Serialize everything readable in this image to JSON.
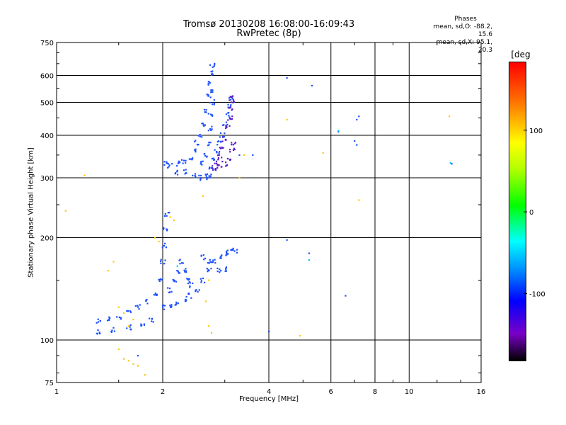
{
  "chart_data": {
    "type": "scatter",
    "title": "Tromsø 20130208 16:08:00-16:09:43",
    "subtitle": "RwPretec (8p)",
    "xlabel": "Frequency [MHz]",
    "ylabel": "Stationary phase Virtual Height [km]",
    "x_scale": "log",
    "y_scale": "log",
    "xlim": [
      1,
      16
    ],
    "ylim": [
      75,
      750
    ],
    "x_ticks": [
      1,
      2,
      4,
      6,
      8,
      10,
      16
    ],
    "y_ticks": [
      75,
      100,
      200,
      300,
      400,
      500,
      600,
      750
    ],
    "grid": true,
    "phases": {
      "title": "Phases",
      "line_o": "mean, sd,O: -88.2, 15.6",
      "line_x": "mean, sd,X:  95.1, 20.3"
    },
    "colorbar": {
      "label": "[deg",
      "ticks": [
        100,
        0,
        -100
      ],
      "colors": [
        "#ff0000",
        "#ffff00",
        "#00ff00",
        "#00ffff",
        "#0000ff",
        "#000000"
      ]
    },
    "series": [
      {
        "color": "#1e50ff",
        "trace_points": [
          [
            1.32,
            114
          ],
          [
            1.4,
            115
          ],
          [
            1.5,
            117
          ],
          [
            1.6,
            121
          ],
          [
            1.7,
            125
          ],
          [
            1.8,
            130
          ],
          [
            1.9,
            136
          ],
          [
            1.96,
            150
          ],
          [
            2.0,
            170
          ],
          [
            2.02,
            190
          ],
          [
            2.04,
            210
          ],
          [
            2.06,
            235
          ],
          [
            1.32,
            106
          ],
          [
            1.45,
            107
          ],
          [
            1.6,
            109
          ],
          [
            1.75,
            111
          ],
          [
            1.85,
            115
          ],
          [
            2.0,
            125
          ],
          [
            2.1,
            125
          ],
          [
            2.2,
            128
          ],
          [
            2.3,
            132
          ],
          [
            2.4,
            135
          ],
          [
            2.5,
            140
          ],
          [
            2.6,
            150
          ],
          [
            2.7,
            160
          ],
          [
            2.1,
            140
          ],
          [
            2.15,
            150
          ],
          [
            2.2,
            160
          ],
          [
            2.25,
            170
          ],
          [
            2.3,
            160
          ],
          [
            2.35,
            150
          ],
          [
            2.4,
            145
          ],
          [
            2.6,
            175
          ],
          [
            2.7,
            170
          ],
          [
            2.8,
            170
          ],
          [
            2.9,
            175
          ],
          [
            3.0,
            180
          ],
          [
            3.1,
            182
          ],
          [
            3.2,
            183
          ],
          [
            2.9,
            160
          ],
          [
            3.0,
            162
          ],
          [
            2.05,
            330
          ],
          [
            2.1,
            325
          ],
          [
            2.2,
            330
          ],
          [
            2.3,
            335
          ],
          [
            2.4,
            345
          ],
          [
            2.45,
            360
          ],
          [
            2.5,
            380
          ],
          [
            2.55,
            400
          ],
          [
            2.6,
            430
          ],
          [
            2.65,
            470
          ],
          [
            2.7,
            520
          ],
          [
            2.73,
            570
          ],
          [
            2.75,
            610
          ],
          [
            2.76,
            640
          ],
          [
            2.45,
            305
          ],
          [
            2.55,
            300
          ],
          [
            2.65,
            302
          ],
          [
            2.7,
            305
          ],
          [
            2.75,
            320
          ],
          [
            2.8,
            340
          ],
          [
            2.85,
            360
          ],
          [
            2.9,
            380
          ],
          [
            2.95,
            400
          ],
          [
            3.0,
            430
          ],
          [
            3.05,
            460
          ],
          [
            3.1,
            490
          ],
          [
            3.12,
            510
          ],
          [
            2.2,
            310
          ],
          [
            2.3,
            312
          ],
          [
            2.6,
            330
          ],
          [
            2.65,
            350
          ],
          [
            2.7,
            380
          ],
          [
            2.72,
            420
          ],
          [
            2.74,
            460
          ],
          [
            2.76,
            500
          ],
          [
            2.78,
            540
          ]
        ]
      },
      {
        "color": "#5a1ec8",
        "trace_points": [
          [
            2.85,
            330
          ],
          [
            2.9,
            345
          ],
          [
            2.95,
            365
          ],
          [
            3.0,
            390
          ],
          [
            3.05,
            420
          ],
          [
            3.1,
            450
          ],
          [
            3.12,
            480
          ],
          [
            3.14,
            505
          ],
          [
            3.16,
            520
          ],
          [
            2.8,
            320
          ],
          [
            2.9,
            322
          ],
          [
            3.0,
            330
          ],
          [
            3.1,
            340
          ],
          [
            3.15,
            360
          ],
          [
            3.18,
            380
          ]
        ]
      },
      {
        "color": "#ffc800",
        "points": [
          [
            1.06,
            240
          ],
          [
            1.4,
            160
          ],
          [
            1.45,
            170
          ],
          [
            1.5,
            125
          ],
          [
            1.55,
            120
          ],
          [
            1.6,
            110
          ],
          [
            1.65,
            115
          ],
          [
            1.5,
            94
          ],
          [
            1.55,
            88
          ],
          [
            1.6,
            87
          ],
          [
            1.65,
            85
          ],
          [
            1.7,
            84
          ],
          [
            1.78,
            79
          ],
          [
            1.9,
            200
          ],
          [
            1.95,
            195
          ],
          [
            2.1,
            230
          ],
          [
            2.15,
            225
          ],
          [
            2.6,
            265
          ],
          [
            2.7,
            150
          ],
          [
            2.65,
            130
          ],
          [
            2.7,
            110
          ],
          [
            2.75,
            105
          ],
          [
            3.3,
            300
          ],
          [
            3.4,
            350
          ],
          [
            4.9,
            103
          ],
          [
            4.5,
            445
          ],
          [
            5.7,
            355
          ],
          [
            7.2,
            258
          ],
          [
            13.0,
            455
          ],
          [
            1.2,
            305
          ]
        ]
      },
      {
        "color": "#1e50ff",
        "points": [
          [
            3.3,
            350
          ],
          [
            3.6,
            350
          ],
          [
            4.5,
            590
          ],
          [
            4.5,
            197
          ],
          [
            5.3,
            560
          ],
          [
            5.2,
            180
          ],
          [
            6.3,
            410
          ],
          [
            7.2,
            455
          ],
          [
            7.0,
            385
          ],
          [
            7.1,
            375
          ],
          [
            6.6,
            135
          ],
          [
            4.0,
            106
          ],
          [
            13.2,
            330
          ],
          [
            1.7,
            90
          ],
          [
            7.1,
            445
          ]
        ]
      },
      {
        "color": "#00c8ff",
        "points": [
          [
            5.2,
            172
          ],
          [
            6.3,
            413
          ],
          [
            13.1,
            332
          ],
          [
            2.2,
            165
          ]
        ]
      }
    ]
  }
}
